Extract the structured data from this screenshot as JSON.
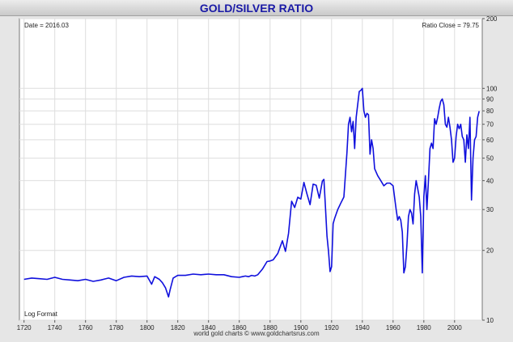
{
  "header": {
    "title": "GOLD/SILVER RATIO"
  },
  "footer": {
    "credit": "world gold charts © www.goldchartsrus.com"
  },
  "chart_data": {
    "type": "line",
    "title": "GOLD/SILVER RATIO",
    "annotations": {
      "date": "Date = 2016.03",
      "close": "Ratio Close = 79.75",
      "format": "Log Format"
    },
    "xlim": [
      1717,
      2018
    ],
    "ylim": [
      10,
      200
    ],
    "yscale": "log",
    "grid": true,
    "legend": "none",
    "x_ticks": [
      1720,
      1740,
      1760,
      1780,
      1800,
      1820,
      1840,
      1860,
      1880,
      1900,
      1920,
      1940,
      1960,
      1980,
      2000
    ],
    "y_ticks": [
      10,
      20,
      30,
      40,
      50,
      60,
      70,
      80,
      90,
      100,
      200
    ],
    "line_color": "#1010dd",
    "series": [
      {
        "x": [
          1720,
          1725,
          1730,
          1735,
          1740,
          1745,
          1750,
          1755,
          1760,
          1765,
          1770,
          1775,
          1780,
          1785,
          1790,
          1795,
          1800,
          1803,
          1805,
          1808,
          1810,
          1812,
          1814,
          1815,
          1817,
          1820,
          1825,
          1830,
          1835,
          1840,
          1845,
          1850,
          1855,
          1860,
          1862,
          1864,
          1866,
          1868,
          1870,
          1872,
          1875,
          1878,
          1880,
          1882,
          1885,
          1888,
          1890,
          1892,
          1894,
          1896,
          1898,
          1900,
          1902,
          1904,
          1906,
          1908,
          1910,
          1912,
          1914,
          1915,
          1916,
          1917,
          1918,
          1919,
          1920,
          1921,
          1922,
          1924,
          1926,
          1928,
          1930,
          1931,
          1932,
          1933,
          1934,
          1935,
          1936,
          1938,
          1939,
          1940,
          1941,
          1942,
          1943,
          1944,
          1945,
          1946,
          1947,
          1948,
          1950,
          1952,
          1954,
          1956,
          1958,
          1960,
          1962,
          1963,
          1964,
          1965,
          1966,
          1967,
          1968,
          1969,
          1970,
          1971,
          1972,
          1973,
          1974,
          1975,
          1976,
          1977,
          1978,
          1979,
          1980,
          1981,
          1982,
          1983,
          1984,
          1985,
          1986,
          1987,
          1988,
          1989,
          1990,
          1991,
          1992,
          1993,
          1994,
          1995,
          1996,
          1997,
          1998,
          1999,
          2000,
          2001,
          2002,
          2003,
          2004,
          2005,
          2006,
          2007,
          2008,
          2009,
          2010,
          2011,
          2012,
          2013,
          2014,
          2015,
          2016
        ],
        "y": [
          15.0,
          15.2,
          15.1,
          15.0,
          15.3,
          15.0,
          14.9,
          14.8,
          15.0,
          14.7,
          14.9,
          15.2,
          14.8,
          15.3,
          15.5,
          15.4,
          15.5,
          14.3,
          15.4,
          15.0,
          14.5,
          13.8,
          12.6,
          13.5,
          15.2,
          15.6,
          15.6,
          15.8,
          15.7,
          15.8,
          15.7,
          15.7,
          15.4,
          15.3,
          15.4,
          15.5,
          15.4,
          15.6,
          15.5,
          15.7,
          16.6,
          17.9,
          18.0,
          18.2,
          19.4,
          22.0,
          19.8,
          23.7,
          32.6,
          30.6,
          33.9,
          33.3,
          39.3,
          35.0,
          31.5,
          38.6,
          38.2,
          33.6,
          39.8,
          40.5,
          30.8,
          23.1,
          19.8,
          16.2,
          17.0,
          26.1,
          27.5,
          30.0,
          32.0,
          34.0,
          53.0,
          70.0,
          75.0,
          65.0,
          72.0,
          55.0,
          75.0,
          97.0,
          98.0,
          100.0,
          80.0,
          75.0,
          78.0,
          77.0,
          52.0,
          60.0,
          55.0,
          45.0,
          42.0,
          40.0,
          38.0,
          39.0,
          39.0,
          38.0,
          30.0,
          27.0,
          28.0,
          27.0,
          24.0,
          16.0,
          17.0,
          21.0,
          28.0,
          30.0,
          29.0,
          26.0,
          35.0,
          40.0,
          37.0,
          34.0,
          28.0,
          16.0,
          34.0,
          42.0,
          30.0,
          40.0,
          55.0,
          58.0,
          55.0,
          74.0,
          70.0,
          75.0,
          82.0,
          88.0,
          90.0,
          85.0,
          70.0,
          68.0,
          75.0,
          68.0,
          60.0,
          48.0,
          50.0,
          62.0,
          70.0,
          67.0,
          70.0,
          62.0,
          60.0,
          48.0,
          63.0,
          55.0,
          75.0,
          33.0,
          50.0,
          60.0,
          62.0,
          75.0,
          79.75
        ]
      }
    ]
  }
}
